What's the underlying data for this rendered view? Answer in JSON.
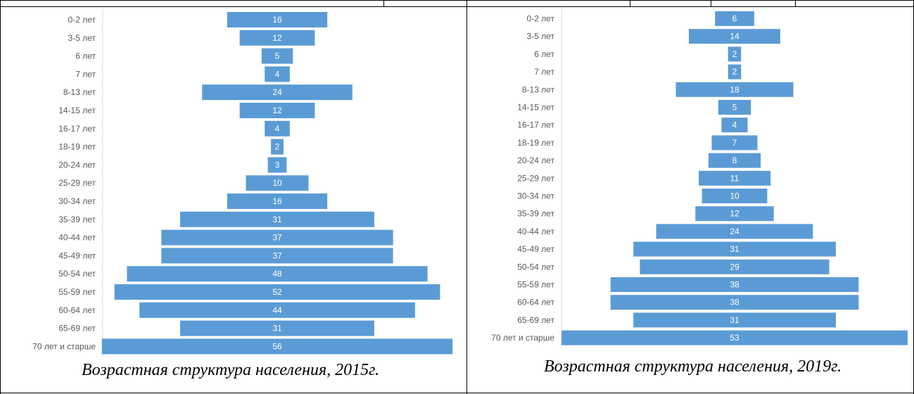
{
  "charts": [
    {
      "caption": "Возрастная структура населения, 2015г."
    },
    {
      "caption": "Возрастная структура населения, 2019г."
    }
  ],
  "colors": {
    "bar": "#5B9BD5",
    "axis": "#D9D9D9",
    "border": "#000000"
  },
  "chart_data": [
    {
      "type": "bar",
      "orientation": "horizontal",
      "style": "centered-pyramid",
      "categories": [
        "0-2 лет",
        "3-5 лет",
        "6 лет",
        "7 лет",
        "8-13 лет",
        "14-15 лет",
        "16-17 лет",
        "18-19 лет",
        "20-24 лет",
        "25-29 лет",
        "30-34 лет",
        "35-39 лет",
        "40-44 лет",
        "45-49 лет",
        "50-54 лет",
        "55-59 лет",
        "60-64 лет",
        "65-69 лет",
        "70 лет и старше"
      ],
      "values": [
        16,
        12,
        5,
        4,
        24,
        12,
        4,
        2,
        3,
        10,
        16,
        31,
        37,
        37,
        48,
        52,
        44,
        31,
        56
      ],
      "title": "",
      "xlabel": "",
      "ylabel": "",
      "data_labels": true,
      "grid": false,
      "legend": "none"
    },
    {
      "type": "bar",
      "orientation": "horizontal",
      "style": "centered-pyramid",
      "categories": [
        "0-2 лет",
        "3-5 лет",
        "6 лет",
        "7 лет",
        "8-13 лет",
        "14-15 лет",
        "16-17 лет",
        "18-19 лет",
        "20-24 лет",
        "25-29 лет",
        "30-34 лет",
        "35-39 лет",
        "40-44 лет",
        "45-49 лет",
        "50-54 лет",
        "55-59 лет",
        "60-64 лет",
        "65-69 лет",
        "70 лет и старше"
      ],
      "values": [
        6,
        14,
        2,
        2,
        18,
        5,
        4,
        7,
        8,
        11,
        10,
        12,
        24,
        31,
        29,
        38,
        38,
        31,
        53
      ],
      "title": "",
      "xlabel": "",
      "ylabel": "",
      "data_labels": true,
      "grid": false,
      "legend": "none"
    }
  ]
}
